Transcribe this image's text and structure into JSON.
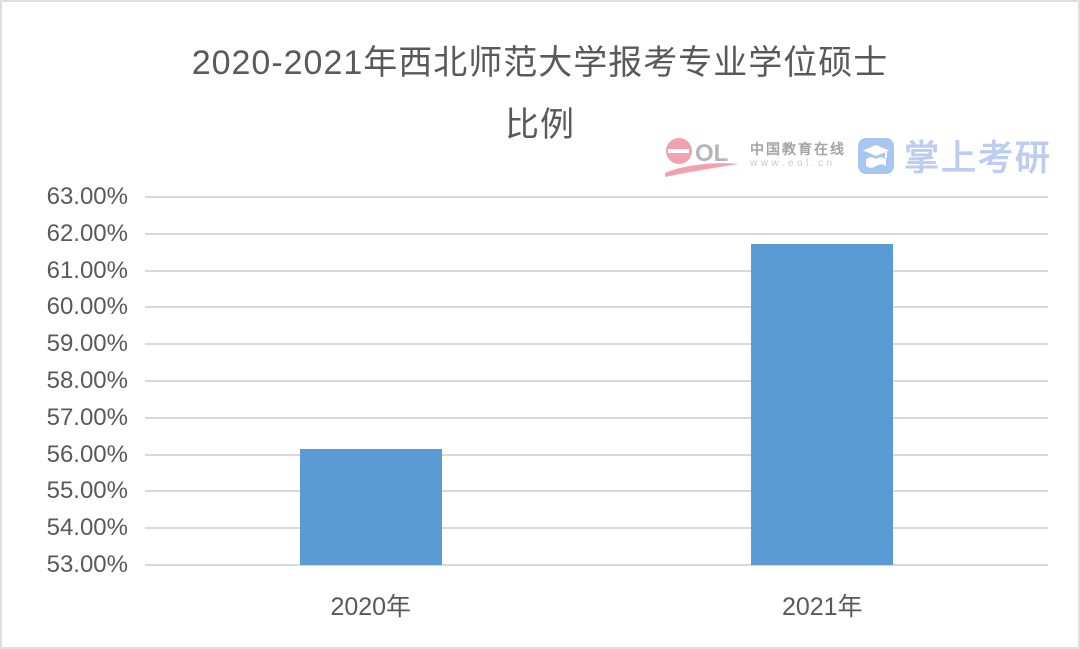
{
  "page": {
    "background": "#ffffff",
    "border_color": "#dfdfdf"
  },
  "title": {
    "line1": "2020-2021年西北师范大学报考专业学位硕士",
    "line2": "比例",
    "color": "#595959"
  },
  "watermark": {
    "eol_logo_icon": "eol-logo-icon",
    "eol_letters": "OL",
    "cn_name": "中国教育在线",
    "cn_url": "www.eol.cn",
    "app_icon": "graduation-cap-icon",
    "app_name": "掌上考研",
    "pink": "#f1a2b1",
    "letters_gray": "#b5b5b5",
    "blue": "#bdcdf1",
    "icon_blue": "#a9c5f1"
  },
  "chart_data": {
    "type": "bar",
    "title": "2020-2021年西北师范大学报考专业学位硕士比例",
    "categories": [
      "2020年",
      "2021年"
    ],
    "values": [
      56.15,
      61.71
    ],
    "xlabel": "",
    "ylabel": "",
    "ylim": [
      53,
      63
    ],
    "yticks": [
      {
        "value": 63,
        "label": "63.00%"
      },
      {
        "value": 62,
        "label": "62.00%"
      },
      {
        "value": 61,
        "label": "61.00%"
      },
      {
        "value": 60,
        "label": "60.00%"
      },
      {
        "value": 59,
        "label": "59.00%"
      },
      {
        "value": 58,
        "label": "58.00%"
      },
      {
        "value": 57,
        "label": "57.00%"
      },
      {
        "value": 56,
        "label": "56.00%"
      },
      {
        "value": 55,
        "label": "55.00%"
      },
      {
        "value": 54,
        "label": "54.00%"
      },
      {
        "value": 53,
        "label": "53.00%"
      }
    ],
    "grid": true,
    "legend": false,
    "bar_color": "#5B9BD5",
    "gridline_color": "#d9d9d9",
    "tick_label_color": "#595959"
  }
}
